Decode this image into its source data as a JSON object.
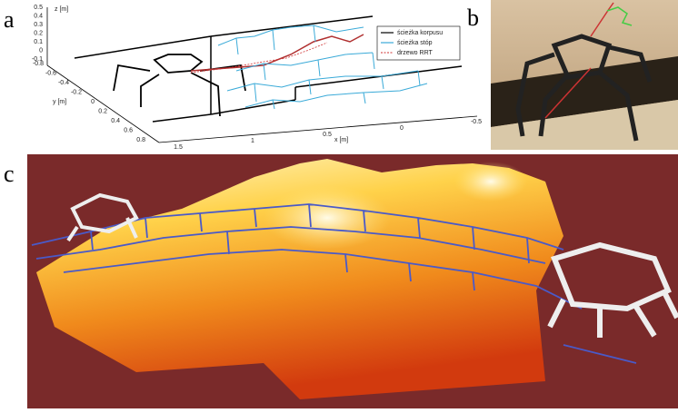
{
  "panels": {
    "a": "a",
    "b": "b",
    "c": "c"
  },
  "plot_a": {
    "z_label": "z [m]",
    "y_label": "y [m]",
    "x_label": "x [m]",
    "z_ticks": [
      "0.5",
      "0.4",
      "0.3",
      "0.2",
      "0.1",
      "0",
      "-0.1"
    ],
    "y_ticks": [
      "-0.8",
      "-0.6",
      "-0.4",
      "-0.2",
      "0",
      "0.2",
      "0.4",
      "0.6",
      "0.8"
    ],
    "x_ticks": [
      "1.5",
      "1",
      "0.5",
      "0",
      "-0.5"
    ],
    "legend": [
      "ścieżka korpusu",
      "ścieżka stóp",
      "drzewo RRT"
    ]
  }
}
